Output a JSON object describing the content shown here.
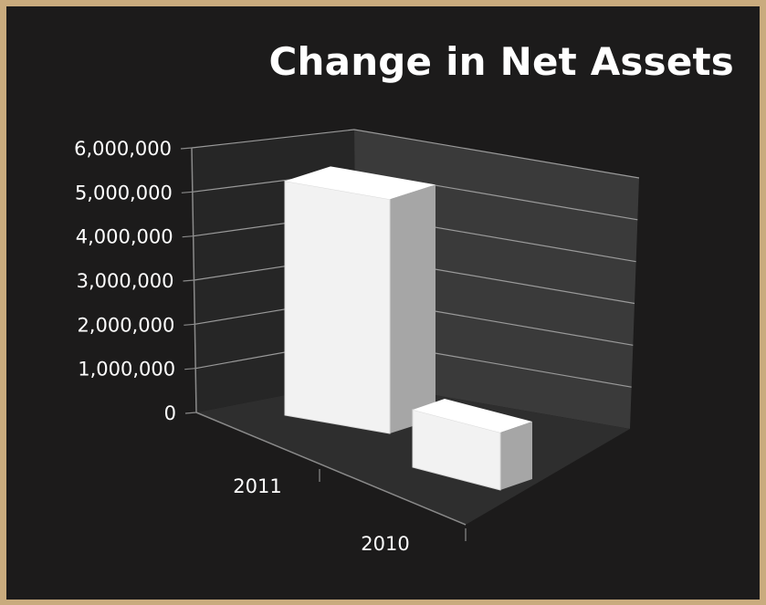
{
  "chart_data": {
    "type": "bar",
    "title": "Change in Net Assets",
    "categories": [
      "2011",
      "2010"
    ],
    "values": [
      5600000,
      900000
    ],
    "ylim": [
      0,
      6000000
    ],
    "yticks": [
      "0",
      "1,000,000",
      "2,000,000",
      "3,000,000",
      "4,000,000",
      "5,000,000",
      "6,000,000"
    ],
    "xlabel": "",
    "ylabel": "",
    "grid": true,
    "legend": "none",
    "style": "3d-column"
  },
  "colors": {
    "background": "#1c1b1b",
    "frame": "#c9ab7e",
    "bar_front": "#f2f2f2",
    "bar_side": "#a6a6a6",
    "bar_top": "#ffffff",
    "text": "#ffffff"
  }
}
